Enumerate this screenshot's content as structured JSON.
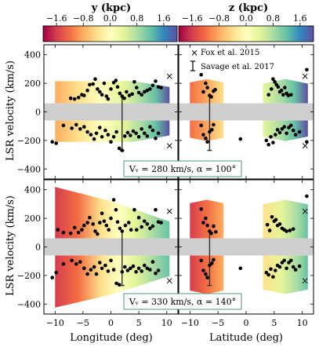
{
  "colorbars": [
    {
      "label": "y (kpc)",
      "ticks": [
        "−1.6",
        "−0.8",
        "0.0",
        "0.8",
        "1.6"
      ],
      "range": [
        -2.0,
        2.0
      ]
    },
    {
      "label": "z (kpc)",
      "ticks": [
        "−1.6",
        "−0.8",
        "0.0",
        "0.8",
        "1.6"
      ],
      "range": [
        -2.0,
        2.0
      ]
    }
  ],
  "legend": {
    "cross": "Fox et al. 2015",
    "bar": "Savage et al. 2017",
    "placement": "top-right of upper-right panel"
  },
  "ylabel": "LSR velocity (km/s)",
  "xlabels": [
    "Longitude (deg)",
    "Latitude (deg)"
  ],
  "yticks": [
    "400",
    "200",
    "0",
    "−200",
    "−400"
  ],
  "xticks_lon": [
    "−10",
    "−5",
    "0",
    "5",
    "10"
  ],
  "xticks_lat": [
    "−10",
    "−5",
    "0",
    "5",
    "10"
  ],
  "annotations": [
    "Vᵥ = 280 km/s, α = 100°",
    "Vᵥ = 330 km/s, α = 140°"
  ],
  "chart_data": {
    "type": "scatter",
    "xlim": [
      -12,
      12
    ],
    "ylim": [
      -470,
      470
    ],
    "grey_band": [
      -60,
      60
    ],
    "colormap": "Spectral (red = −2, violet = +2)",
    "fox_points": {
      "upper": [
        [
          10.5,
          250
        ],
        [
          10.5,
          -235
        ]
      ],
      "lower": [
        [
          10.5,
          250
        ],
        [
          10.5,
          -235
        ]
      ]
    },
    "savage_bar": {
      "lon": 2.0,
      "lat": -6.5,
      "vmin": -270,
      "vmax": 110
    },
    "scatter_upper_lon": [
      [
        -7.2,
        95
      ],
      [
        -6.5,
        90
      ],
      [
        -5.8,
        100
      ],
      [
        -5.2,
        120
      ],
      [
        -4.8,
        115
      ],
      [
        -4.2,
        150
      ],
      [
        -3.8,
        190
      ],
      [
        -3.2,
        195
      ],
      [
        -2.8,
        230
      ],
      [
        -2.4,
        160
      ],
      [
        -2.0,
        140
      ],
      [
        -1.6,
        120
      ],
      [
        -1.2,
        200
      ],
      [
        -0.8,
        110
      ],
      [
        -0.5,
        90
      ],
      [
        0.0,
        160
      ],
      [
        0.5,
        205
      ],
      [
        0.9,
        220
      ],
      [
        1.2,
        175
      ],
      [
        1.6,
        130
      ],
      [
        2.0,
        110
      ],
      [
        2.4,
        95
      ],
      [
        2.8,
        140
      ],
      [
        3.3,
        115
      ],
      [
        3.8,
        125
      ],
      [
        4.2,
        210
      ],
      [
        4.6,
        170
      ],
      [
        5.0,
        135
      ],
      [
        5.5,
        120
      ],
      [
        6.0,
        140
      ],
      [
        6.5,
        150
      ],
      [
        7.0,
        160
      ],
      [
        7.5,
        185
      ],
      [
        8.0,
        215
      ],
      [
        8.5,
        175
      ],
      [
        9.0,
        170
      ],
      [
        -10.5,
        -210
      ],
      [
        -9.8,
        -220
      ],
      [
        -8.5,
        -95
      ],
      [
        -7.0,
        -115
      ],
      [
        -6.2,
        -90
      ],
      [
        -5.5,
        -120
      ],
      [
        -4.8,
        -105
      ],
      [
        -4.2,
        -140
      ],
      [
        -3.6,
        -160
      ],
      [
        -3.0,
        -190
      ],
      [
        -2.6,
        -150
      ],
      [
        -2.0,
        -110
      ],
      [
        -1.6,
        -175
      ],
      [
        -1.0,
        -130
      ],
      [
        -0.5,
        -160
      ],
      [
        0.0,
        -210
      ],
      [
        0.5,
        -175
      ],
      [
        1.0,
        -140
      ],
      [
        1.5,
        -255
      ],
      [
        2.0,
        -270
      ],
      [
        2.5,
        -170
      ],
      [
        3.0,
        -145
      ],
      [
        3.5,
        -165
      ],
      [
        4.0,
        -135
      ],
      [
        4.5,
        -150
      ],
      [
        5.0,
        -175
      ],
      [
        5.5,
        -120
      ],
      [
        6.0,
        -150
      ],
      [
        6.5,
        -170
      ],
      [
        7.0,
        -105
      ],
      [
        7.5,
        -130
      ],
      [
        8.0,
        -185
      ],
      [
        8.5,
        -150
      ]
    ],
    "scatter_upper_lat": [
      [
        -8.0,
        260
      ],
      [
        -7.6,
        140
      ],
      [
        -7.2,
        200
      ],
      [
        -6.9,
        170
      ],
      [
        -6.5,
        115
      ],
      [
        -6.2,
        105
      ],
      [
        -5.8,
        145
      ],
      [
        -5.5,
        155
      ],
      [
        4.0,
        120
      ],
      [
        4.5,
        160
      ],
      [
        4.8,
        230
      ],
      [
        5.1,
        210
      ],
      [
        5.4,
        190
      ],
      [
        5.7,
        175
      ],
      [
        6.0,
        140
      ],
      [
        6.3,
        150
      ],
      [
        6.6,
        120
      ],
      [
        6.9,
        170
      ],
      [
        7.2,
        130
      ],
      [
        7.5,
        115
      ],
      [
        8.0,
        120
      ],
      [
        10.8,
        295
      ],
      [
        -8.0,
        -95
      ],
      [
        -7.6,
        -160
      ],
      [
        -7.2,
        -185
      ],
      [
        -6.9,
        -210
      ],
      [
        -6.5,
        -140
      ],
      [
        -6.1,
        -125
      ],
      [
        -5.8,
        -90
      ],
      [
        3.6,
        -200
      ],
      [
        4.0,
        -230
      ],
      [
        4.4,
        -175
      ],
      [
        4.8,
        -215
      ],
      [
        5.2,
        -160
      ],
      [
        5.6,
        -125
      ],
      [
        6.0,
        -145
      ],
      [
        6.4,
        -120
      ],
      [
        6.8,
        -105
      ],
      [
        7.2,
        -150
      ],
      [
        7.6,
        -110
      ],
      [
        8.0,
        -95
      ],
      [
        8.4,
        -130
      ],
      [
        8.8,
        -160
      ],
      [
        9.5,
        -140
      ],
      [
        10.8,
        -210
      ],
      [
        -1.0,
        -190
      ]
    ],
    "scatter_lower_lon": [
      [
        -9.5,
        120
      ],
      [
        -8.5,
        100
      ],
      [
        -7.2,
        95
      ],
      [
        -6.5,
        135
      ],
      [
        -5.8,
        100
      ],
      [
        -5.2,
        120
      ],
      [
        -4.8,
        150
      ],
      [
        -4.2,
        170
      ],
      [
        -3.8,
        205
      ],
      [
        -3.2,
        160
      ],
      [
        -2.8,
        110
      ],
      [
        -2.4,
        90
      ],
      [
        -2.0,
        170
      ],
      [
        -1.6,
        235
      ],
      [
        -1.2,
        180
      ],
      [
        -0.8,
        150
      ],
      [
        -0.4,
        120
      ],
      [
        0.0,
        200
      ],
      [
        0.5,
        330
      ],
      [
        0.9,
        260
      ],
      [
        1.2,
        175
      ],
      [
        1.6,
        130
      ],
      [
        2.0,
        110
      ],
      [
        2.6,
        150
      ],
      [
        3.2,
        170
      ],
      [
        3.6,
        120
      ],
      [
        4.2,
        260
      ],
      [
        4.6,
        120
      ],
      [
        5.0,
        205
      ],
      [
        5.5,
        140
      ],
      [
        6.0,
        180
      ],
      [
        6.5,
        160
      ],
      [
        7.0,
        130
      ],
      [
        7.5,
        145
      ],
      [
        8.0,
        260
      ],
      [
        8.5,
        175
      ],
      [
        9.0,
        170
      ],
      [
        -10.5,
        -215
      ],
      [
        -9.8,
        -180
      ],
      [
        -8.5,
        -120
      ],
      [
        -7.0,
        -95
      ],
      [
        -6.2,
        -120
      ],
      [
        -5.5,
        -105
      ],
      [
        -4.8,
        -150
      ],
      [
        -4.2,
        -190
      ],
      [
        -3.6,
        -160
      ],
      [
        -3.0,
        -140
      ],
      [
        -2.6,
        -190
      ],
      [
        -2.0,
        -110
      ],
      [
        -1.6,
        -150
      ],
      [
        -1.0,
        -130
      ],
      [
        -0.5,
        -170
      ],
      [
        0.0,
        -95
      ],
      [
        0.5,
        -160
      ],
      [
        1.0,
        -255
      ],
      [
        1.5,
        -265
      ],
      [
        2.0,
        -175
      ],
      [
        2.5,
        -140
      ],
      [
        3.0,
        -165
      ],
      [
        3.5,
        -150
      ],
      [
        4.0,
        -135
      ],
      [
        4.5,
        -175
      ],
      [
        5.0,
        -150
      ],
      [
        5.5,
        -170
      ],
      [
        6.0,
        -130
      ],
      [
        6.5,
        -150
      ],
      [
        7.0,
        -160
      ],
      [
        7.5,
        -105
      ],
      [
        8.0,
        -185
      ],
      [
        8.5,
        -165
      ]
    ],
    "scatter_lower_lat": [
      [
        -8.0,
        265
      ],
      [
        -7.6,
        170
      ],
      [
        -7.2,
        200
      ],
      [
        -6.9,
        150
      ],
      [
        -6.5,
        110
      ],
      [
        -6.2,
        95
      ],
      [
        -5.8,
        145
      ],
      [
        -5.4,
        105
      ],
      [
        3.8,
        155
      ],
      [
        4.2,
        115
      ],
      [
        4.6,
        210
      ],
      [
        5.0,
        180
      ],
      [
        5.3,
        190
      ],
      [
        5.6,
        150
      ],
      [
        6.0,
        160
      ],
      [
        6.4,
        130
      ],
      [
        6.8,
        120
      ],
      [
        7.2,
        110
      ],
      [
        7.8,
        115
      ],
      [
        8.4,
        125
      ],
      [
        10.8,
        355
      ],
      [
        -8.0,
        -95
      ],
      [
        -7.6,
        -165
      ],
      [
        -7.2,
        -190
      ],
      [
        -6.9,
        -215
      ],
      [
        -6.5,
        -130
      ],
      [
        -6.1,
        -115
      ],
      [
        -5.8,
        -90
      ],
      [
        3.6,
        -180
      ],
      [
        4.0,
        -195
      ],
      [
        4.4,
        -155
      ],
      [
        4.8,
        -210
      ],
      [
        5.2,
        -165
      ],
      [
        5.6,
        -130
      ],
      [
        6.0,
        -140
      ],
      [
        6.4,
        -110
      ],
      [
        6.8,
        -95
      ],
      [
        7.2,
        -150
      ],
      [
        7.6,
        -110
      ],
      [
        8.0,
        -95
      ],
      [
        8.4,
        -140
      ],
      [
        8.8,
        -160
      ],
      [
        9.5,
        -135
      ],
      [
        -1.0,
        -150
      ]
    ]
  }
}
